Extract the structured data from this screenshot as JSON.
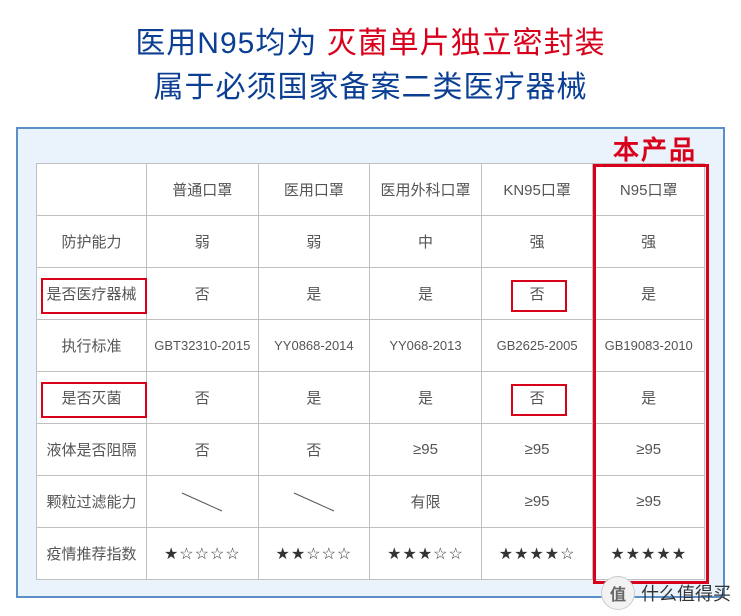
{
  "header": {
    "line1_a": "医用N95均为 ",
    "line1_b": "灭菌单片独立密封装",
    "line2": "属于必须国家备案二类医疗器械",
    "color_normal": "#0b3f93",
    "color_highlight": "#d9001b"
  },
  "product_label": "本产品",
  "table": {
    "columns": [
      "",
      "普通口罩",
      "医用口罩",
      "医用外科口罩",
      "KN95口罩",
      "N95口罩"
    ],
    "row_headers": [
      "防护能力",
      "是否医疗器械",
      "执行标准",
      "是否灭菌",
      "液体是否阻隔",
      "颗粒过滤能力",
      "疫情推荐指数"
    ],
    "rows": [
      [
        "弱",
        "弱",
        "中",
        "强",
        "强"
      ],
      [
        "否",
        "是",
        "是",
        "否",
        "是"
      ],
      [
        "GBT32310-2015",
        "YY0868-2014",
        "YY068-2013",
        "GB2625-2005",
        "GB19083-2010"
      ],
      [
        "否",
        "是",
        "是",
        "否",
        "是"
      ],
      [
        "否",
        "否",
        "≥95",
        "≥95",
        "≥95"
      ],
      [
        "\\",
        "\\",
        "有限",
        "≥95",
        "≥95"
      ],
      [
        "★☆☆☆☆",
        "★★☆☆☆",
        "★★★☆☆",
        "★★★★☆",
        "★★★★★"
      ]
    ],
    "border_color": "#bfbfbf",
    "wrap_border_color": "#5a8fc8",
    "wrap_bg": "#eaf2fb"
  },
  "highlights": {
    "color": "#d9001b",
    "row_header_cells": [
      1,
      3
    ],
    "body_cells": [
      {
        "r": 1,
        "c": 3
      },
      {
        "r": 3,
        "c": 3
      }
    ],
    "product_column": 5
  },
  "footer": {
    "icon": "值",
    "text": "什么值得买"
  }
}
